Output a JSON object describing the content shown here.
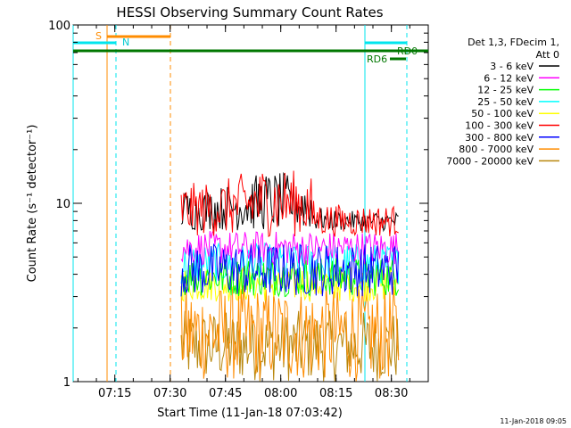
{
  "chart_data": {
    "type": "line",
    "title": "HESSI Observing Summary Count Rates",
    "xlabel": "Start Time (11-Jan-18 07:03:42)",
    "ylabel": "Count Rate (s⁻¹ detector⁻¹)",
    "y_scale": "log",
    "ylim": [
      1,
      100
    ],
    "xlim": [
      "07:03:42",
      "08:40:00"
    ],
    "x_ticks": [
      "07:15",
      "07:30",
      "07:45",
      "08:00",
      "08:15",
      "08:30"
    ],
    "y_ticks": [
      "1",
      "10",
      "100"
    ],
    "legend_header": [
      "Det 1,3, FDecim 1,",
      "Att 0"
    ],
    "legend_placement": "right",
    "series": [
      {
        "name": "3 - 6 keV",
        "color": "#000000",
        "start": "07:33",
        "end": "08:32",
        "level": 9.5,
        "lo": 7.0,
        "hi": 12.0
      },
      {
        "name": "6 - 12 keV",
        "color": "#ff00ff",
        "start": "07:33",
        "end": "08:32",
        "level": 5.6,
        "lo": 4.5,
        "hi": 7.0
      },
      {
        "name": "12 - 25 keV",
        "color": "#00ff00",
        "start": "07:33",
        "end": "08:32",
        "level": 4.0,
        "lo": 3.0,
        "hi": 5.0
      },
      {
        "name": "25 - 50 keV",
        "color": "#00ffff",
        "start": "07:33",
        "end": "08:32",
        "level": 4.8,
        "lo": 3.5,
        "hi": 6.0
      },
      {
        "name": "50 - 100 keV",
        "color": "#ffff00",
        "start": "07:33",
        "end": "08:32",
        "level": 3.5,
        "lo": 2.8,
        "hi": 4.5
      },
      {
        "name": "100 - 300 keV",
        "color": "#ff0000",
        "start": "07:33",
        "end": "08:32",
        "level": 9.0,
        "lo": 6.5,
        "hi": 13.0
      },
      {
        "name": "300 - 800 keV",
        "color": "#0000ff",
        "start": "07:33",
        "end": "08:32",
        "level": 4.5,
        "lo": 3.0,
        "hi": 6.0
      },
      {
        "name": "800 - 7000 keV",
        "color": "#ff8c00",
        "start": "07:33",
        "end": "08:32",
        "level": 2.4,
        "lo": 1.0,
        "hi": 3.5
      },
      {
        "name": "7000 - 20000 keV",
        "color": "#b8860b",
        "start": "07:33",
        "end": "08:32",
        "level": 2.0,
        "lo": 1.0,
        "hi": 2.5
      }
    ],
    "annotations": [
      {
        "label": "S",
        "color": "#ff8c00"
      },
      {
        "label": "N",
        "color": "#00e5ee"
      },
      {
        "label": "RD0",
        "color": "#007700"
      },
      {
        "label": "RD6",
        "color": "#007700"
      }
    ],
    "timestamp": "11-Jan-2018 09:05"
  }
}
